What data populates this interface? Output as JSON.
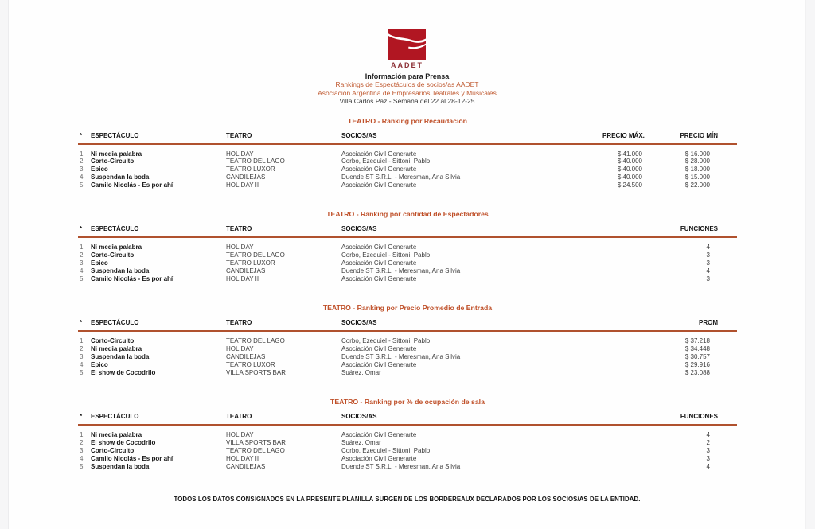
{
  "logo": {
    "label": "AADET",
    "box_color": "#b11622",
    "label_color": "#8d3137"
  },
  "header": {
    "line1": "Información para Prensa",
    "line2": "Rankings de Espectáculos de socios/as AADET",
    "line3": "Asociación Argentina de Empresarios Teatrales y Musicales",
    "line4": "Villa Carlos Paz - Semana del 22 al 28-12-25"
  },
  "accent_colors": {
    "title_red": "#bf4f28",
    "rule_red": "#b0512e"
  },
  "tables": [
    {
      "title": "TEATRO - Ranking por Recaudación",
      "columns": [
        "*",
        "ESPECTÁCULO",
        "TEATRO",
        "SOCIOS/AS",
        "PRECIO MÁX.",
        "PRECIO MÍN"
      ],
      "rows": [
        [
          "1",
          "Ni media palabra",
          "HOLIDAY",
          "Asociación Civil Generarte",
          "$ 41.000",
          "$ 16.000"
        ],
        [
          "2",
          "Corto-Circuito",
          "TEATRO DEL LAGO",
          "Corbo, Ezequiel - Sittoni, Pablo",
          "$ 40.000",
          "$ 28.000"
        ],
        [
          "3",
          "Epico",
          "TEATRO LUXOR",
          "Asociación Civil Generarte",
          "$ 40.000",
          "$ 18.000"
        ],
        [
          "4",
          "Suspendan la boda",
          "CANDILEJAS",
          "Duende ST S.R.L. - Meresman, Ana Silvia",
          "$ 40.000",
          "$ 15.000"
        ],
        [
          "5",
          "Camilo Nicolás - Es por ahí",
          "HOLIDAY II",
          "Asociación Civil Generarte",
          "$ 24.500",
          "$ 22.000"
        ]
      ]
    },
    {
      "title": "TEATRO - Ranking por cantidad de Espectadores",
      "columns": [
        "*",
        "ESPECTÁCULO",
        "TEATRO",
        "SOCIOS/AS",
        "FUNCIONES"
      ],
      "rows": [
        [
          "1",
          "Ni media palabra",
          "HOLIDAY",
          "Asociación Civil Generarte",
          "4"
        ],
        [
          "2",
          "Corto-Circuito",
          "TEATRO DEL LAGO",
          "Corbo, Ezequiel - Sittoni, Pablo",
          "3"
        ],
        [
          "3",
          "Epico",
          "TEATRO LUXOR",
          "Asociación Civil Generarte",
          "3"
        ],
        [
          "4",
          "Suspendan la boda",
          "CANDILEJAS",
          "Duende ST S.R.L. - Meresman, Ana Silvia",
          "4"
        ],
        [
          "5",
          "Camilo Nicolás - Es por ahí",
          "HOLIDAY II",
          "Asociación Civil Generarte",
          "3"
        ]
      ]
    },
    {
      "title": "TEATRO - Ranking por Precio Promedio de Entrada",
      "columns": [
        "*",
        "ESPECTÁCULO",
        "TEATRO",
        "SOCIOS/AS",
        "PROM"
      ],
      "rows": [
        [
          "1",
          "Corto-Circuito",
          "TEATRO DEL LAGO",
          "Corbo, Ezequiel - Sittoni, Pablo",
          "$ 37.218"
        ],
        [
          "2",
          "Ni media palabra",
          "HOLIDAY",
          "Asociación Civil Generarte",
          "$ 34.448"
        ],
        [
          "3",
          "Suspendan la boda",
          "CANDILEJAS",
          "Duende ST S.R.L. - Meresman, Ana Silvia",
          "$ 30.757"
        ],
        [
          "4",
          "Epico",
          "TEATRO LUXOR",
          "Asociación Civil Generarte",
          "$ 29.916"
        ],
        [
          "5",
          "El show de Cocodrilo",
          "VILLA SPORTS BAR",
          "Suárez, Omar",
          "$ 23.088"
        ]
      ]
    },
    {
      "title": "TEATRO - Ranking por % de ocupación de sala",
      "columns": [
        "*",
        "ESPECTÁCULO",
        "TEATRO",
        "SOCIOS/AS",
        "FUNCIONES"
      ],
      "rows": [
        [
          "1",
          "Ni media palabra",
          "HOLIDAY",
          "Asociación Civil Generarte",
          "4"
        ],
        [
          "2",
          "El show de Cocodrilo",
          "VILLA SPORTS BAR",
          "Suárez, Omar",
          "2"
        ],
        [
          "3",
          "Corto-Circuito",
          "TEATRO DEL LAGO",
          "Corbo, Ezequiel - Sittoni, Pablo",
          "3"
        ],
        [
          "4",
          "Camilo Nicolás - Es por ahí",
          "HOLIDAY II",
          "Asociación Civil Generarte",
          "3"
        ],
        [
          "5",
          "Suspendan la boda",
          "CANDILEJAS",
          "Duende ST S.R.L. - Meresman, Ana Silvia",
          "4"
        ]
      ]
    }
  ],
  "footer": {
    "text": "TODOS LOS DATOS CONSIGNADOS EN LA PRESENTE PLANILLA SURGEN DE LOS BORDEREAUX DECLARADOS POR LOS SOCIOS/AS DE LA ENTIDAD."
  }
}
